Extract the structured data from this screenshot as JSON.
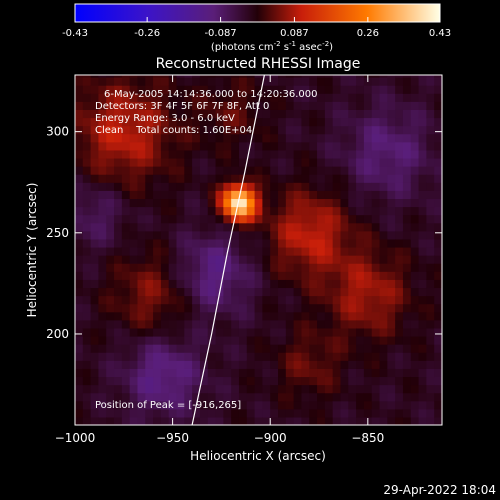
{
  "colorbar": {
    "ticks": [
      "-0.43",
      "-0.26",
      "-0.087",
      "0.087",
      "0.26",
      "0.43"
    ],
    "tick_values": [
      -0.43,
      -0.26,
      -0.087,
      0.087,
      0.26,
      0.43
    ],
    "units_main": "(photons cm",
    "units_sup1": "-2",
    "units_mid": " s",
    "units_sup2": "-1",
    "units_mid2": " asec",
    "units_sup3": "-2",
    "units_end": ")"
  },
  "chart_data": {
    "type": "heatmap",
    "title": "Reconstructed RHESSI Image",
    "xlabel": "Heliocentric X (arcsec)",
    "ylabel": "Heliocentric Y (arcsec)",
    "xlim": [
      -1000,
      -812
    ],
    "ylim": [
      155,
      328
    ],
    "xticks": [
      -1000,
      -950,
      -900,
      -850
    ],
    "xtick_labels": [
      "−1000",
      "−950",
      "−900",
      "−850"
    ],
    "yticks": [
      200,
      250,
      300
    ],
    "ytick_labels": [
      "200",
      "250",
      "300"
    ],
    "peak": [
      -916,
      265
    ],
    "zlim": [
      -0.43,
      0.43
    ],
    "limb_points": [
      [
        -940,
        155
      ],
      [
        -930,
        200
      ],
      [
        -922,
        240
      ],
      [
        -913,
        280
      ],
      [
        -903,
        328
      ]
    ],
    "features": [
      {
        "x": -916,
        "y": 265,
        "value": 0.43,
        "spread": 6
      },
      {
        "x": -975,
        "y": 300,
        "value": 0.12,
        "spread": 18
      },
      {
        "x": -880,
        "y": 250,
        "value": 0.12,
        "spread": 15
      },
      {
        "x": -960,
        "y": 220,
        "value": 0.08,
        "spread": 15
      },
      {
        "x": -850,
        "y": 220,
        "value": 0.1,
        "spread": 15
      },
      {
        "x": -880,
        "y": 185,
        "value": 0.06,
        "spread": 12
      },
      {
        "x": -920,
        "y": 310,
        "value": 0.05,
        "spread": 12
      },
      {
        "x": -930,
        "y": 230,
        "value": -0.1,
        "spread": 14
      },
      {
        "x": -955,
        "y": 180,
        "value": -0.1,
        "spread": 14
      },
      {
        "x": -840,
        "y": 290,
        "value": -0.08,
        "spread": 16
      },
      {
        "x": -990,
        "y": 260,
        "value": -0.06,
        "spread": 12
      }
    ],
    "annotations": {
      "time": "6-May-2005 14:14:36.000 to 14:20:36.000",
      "detectors": "Detectors: 3F 4F 5F 6F 7F 8F, Att 0",
      "energy": "Energy Range: 3.0 - 6.0 keV",
      "clean": "Clean    Total counts: 1.60E+04",
      "peak_label": "Position of Peak = [-916,265]"
    }
  },
  "footer": {
    "timestamp": "29-Apr-2022 18:04"
  }
}
